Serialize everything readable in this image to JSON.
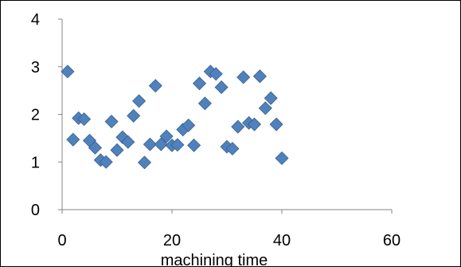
{
  "chart_data": {
    "type": "scatter",
    "title": "",
    "xlabel": "machining time",
    "ylabel": "",
    "xlim": [
      0,
      60
    ],
    "ylim": [
      0,
      4
    ],
    "x_ticks": [
      0,
      20,
      40,
      60
    ],
    "y_ticks": [
      0,
      1,
      2,
      3,
      4
    ],
    "grid": false,
    "legend": "none",
    "marker": "diamond",
    "colors": {
      "marker": "#4F81BD",
      "marker_edge": "#385D8A",
      "axis": "#868686",
      "border": "#000000"
    },
    "points": [
      {
        "x": 1,
        "y": 2.9
      },
      {
        "x": 2,
        "y": 1.47
      },
      {
        "x": 3,
        "y": 1.92
      },
      {
        "x": 4,
        "y": 1.9
      },
      {
        "x": 5,
        "y": 1.45
      },
      {
        "x": 6,
        "y": 1.3
      },
      {
        "x": 7,
        "y": 1.04
      },
      {
        "x": 8,
        "y": 1.0
      },
      {
        "x": 9,
        "y": 1.85
      },
      {
        "x": 10,
        "y": 1.25
      },
      {
        "x": 11,
        "y": 1.52
      },
      {
        "x": 12,
        "y": 1.42
      },
      {
        "x": 13,
        "y": 1.97
      },
      {
        "x": 14,
        "y": 2.28
      },
      {
        "x": 15,
        "y": 0.99
      },
      {
        "x": 16,
        "y": 1.37
      },
      {
        "x": 17,
        "y": 2.6
      },
      {
        "x": 18,
        "y": 1.37
      },
      {
        "x": 19,
        "y": 1.54
      },
      {
        "x": 20,
        "y": 1.35
      },
      {
        "x": 21,
        "y": 1.36
      },
      {
        "x": 22,
        "y": 1.68
      },
      {
        "x": 23,
        "y": 1.77
      },
      {
        "x": 24,
        "y": 1.35
      },
      {
        "x": 25,
        "y": 2.65
      },
      {
        "x": 26,
        "y": 2.23
      },
      {
        "x": 27,
        "y": 2.9
      },
      {
        "x": 28,
        "y": 2.85
      },
      {
        "x": 29,
        "y": 2.57
      },
      {
        "x": 30,
        "y": 1.32
      },
      {
        "x": 31,
        "y": 1.28
      },
      {
        "x": 32,
        "y": 1.74
      },
      {
        "x": 33,
        "y": 2.78
      },
      {
        "x": 34,
        "y": 1.82
      },
      {
        "x": 35,
        "y": 1.79
      },
      {
        "x": 36,
        "y": 2.8
      },
      {
        "x": 37,
        "y": 2.13
      },
      {
        "x": 38,
        "y": 2.34
      },
      {
        "x": 39,
        "y": 1.79
      },
      {
        "x": 40,
        "y": 1.08
      }
    ]
  }
}
